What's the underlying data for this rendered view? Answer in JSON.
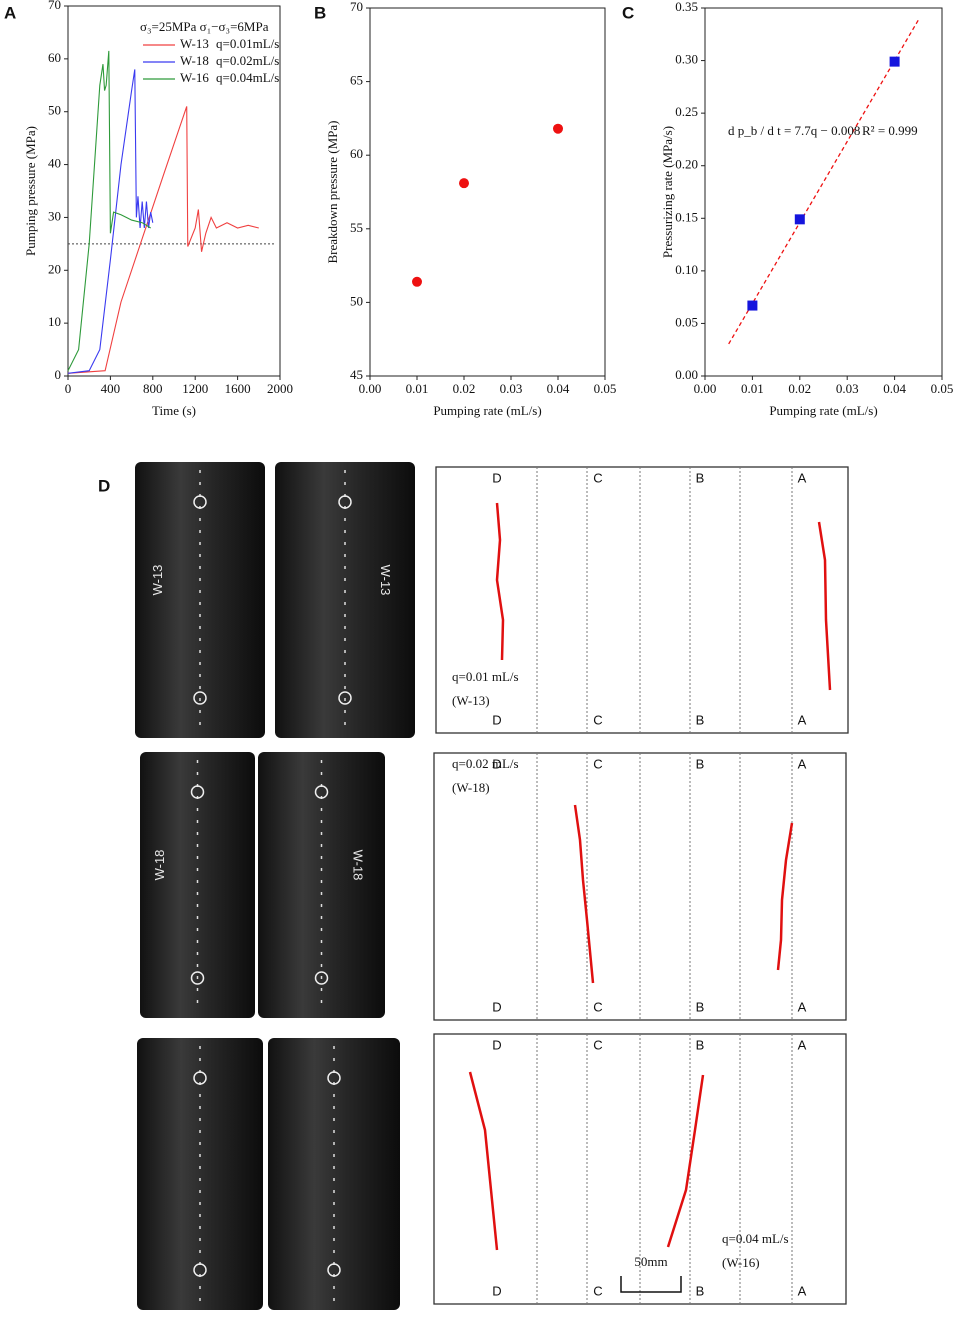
{
  "chart_data": [
    {
      "type": "line",
      "panel": "A",
      "xlabel": "Time (s)",
      "ylabel": "Pumping pressure (MPa)",
      "xlim": [
        0,
        2000
      ],
      "xticks": [
        0,
        400,
        800,
        1200,
        1600,
        2000
      ],
      "ylim": [
        0,
        70
      ],
      "yticks": [
        0,
        10,
        20,
        30,
        40,
        50,
        60,
        70
      ],
      "legend_title": "σ₃=25MPa  σ₁−σ₃=6MPa",
      "reference_line": 25,
      "series": [
        {
          "name": "W-13",
          "rate": "q=0.01mL/s",
          "color": "#f04040",
          "x": [
            0,
            350,
            500,
            700,
            900,
            1120,
            1130,
            1200,
            1230,
            1260,
            1300,
            1350,
            1400,
            1500,
            1600,
            1700,
            1800
          ],
          "values": [
            0.5,
            1,
            14,
            26,
            38,
            51,
            24.5,
            28,
            31.5,
            23.5,
            27,
            30,
            28,
            29,
            28,
            28.5,
            28
          ]
        },
        {
          "name": "W-18",
          "rate": "q=0.02mL/s",
          "color": "#3a3af0",
          "x": [
            0,
            200,
            300,
            400,
            500,
            600,
            630,
            645,
            660,
            680,
            700,
            720,
            740,
            760,
            780,
            800
          ],
          "values": [
            0.5,
            1,
            5,
            22,
            40,
            54,
            58,
            30,
            34,
            28,
            33,
            28,
            33,
            28,
            31,
            29
          ]
        },
        {
          "name": "W-16",
          "rate": "q=0.04mL/s",
          "color": "#2e9a3a",
          "x": [
            0,
            100,
            200,
            300,
            330,
            345,
            360,
            385,
            400,
            430,
            500,
            600,
            700,
            780
          ],
          "values": [
            1,
            5,
            25,
            55,
            59,
            54,
            55,
            61.5,
            27,
            31,
            30.5,
            29.5,
            29,
            28
          ]
        }
      ]
    },
    {
      "type": "scatter",
      "panel": "B",
      "xlabel": "Pumping rate (mL/s)",
      "ylabel": "Breakdown pressure (MPa)",
      "xlim": [
        0,
        0.05
      ],
      "xticks": [
        {
          "value": 0,
          "label": "0.00"
        },
        {
          "value": 0.01,
          "label": "0.01"
        },
        {
          "value": 0.02,
          "label": "0.02"
        },
        {
          "value": 0.03,
          "label": "0.03"
        },
        {
          "value": 0.04,
          "label": "0.04"
        },
        {
          "value": 0.05,
          "label": "0.05"
        }
      ],
      "ylim": [
        45,
        70
      ],
      "yticks": [
        45,
        50,
        55,
        60,
        65,
        70
      ],
      "marker": "circle",
      "color": "#ee1111",
      "x": [
        0.01,
        0.02,
        0.04
      ],
      "values": [
        51.4,
        58.1,
        61.8
      ]
    },
    {
      "type": "scatter",
      "panel": "C",
      "xlabel": "Pumping rate (mL/s)",
      "ylabel": "Pressurizing rate (MPa/s)",
      "xlim": [
        0,
        0.05
      ],
      "xticks": [
        {
          "value": 0,
          "label": "0.00"
        },
        {
          "value": 0.01,
          "label": "0.01"
        },
        {
          "value": 0.02,
          "label": "0.02"
        },
        {
          "value": 0.03,
          "label": "0.03"
        },
        {
          "value": 0.04,
          "label": "0.04"
        },
        {
          "value": 0.05,
          "label": "0.05"
        }
      ],
      "ylim": [
        0,
        0.35
      ],
      "yticks": [
        {
          "value": 0,
          "label": "0.00"
        },
        {
          "value": 0.05,
          "label": "0.05"
        },
        {
          "value": 0.1,
          "label": "0.10"
        },
        {
          "value": 0.15,
          "label": "0.15"
        },
        {
          "value": 0.2,
          "label": "0.20"
        },
        {
          "value": 0.25,
          "label": "0.25"
        },
        {
          "value": 0.3,
          "label": "0.30"
        },
        {
          "value": 0.35,
          "label": "0.35"
        }
      ],
      "marker": "square",
      "color": "#1515dd",
      "x": [
        0.01,
        0.02,
        0.04
      ],
      "values": [
        0.067,
        0.149,
        0.299
      ],
      "fit": {
        "slope": 7.7,
        "intercept": -0.008,
        "xrange": [
          0.005,
          0.045
        ],
        "color": "#ee1111"
      },
      "equation": "d p_b / d t = 7.7q − 0.008",
      "r2": "R² = 0.999"
    }
  ],
  "panel_d": {
    "label": "D",
    "scale_bar": "50mm",
    "rows": [
      {
        "top": [
          "D",
          "C",
          "B",
          "A"
        ],
        "bottom": [
          "D",
          "C",
          "B",
          "A"
        ],
        "rate": "q=0.01 mL/s",
        "sample": "(W-13)",
        "photo_label": "W-13"
      },
      {
        "top": [
          "D",
          "C",
          "B",
          "A"
        ],
        "bottom": [
          "D",
          "C",
          "B",
          "A"
        ],
        "rate": "q=0.02 mL/s",
        "sample": "(W-18)",
        "photo_label": "W-18"
      },
      {
        "top": [
          "D",
          "C",
          "B",
          "A"
        ],
        "bottom": [
          "D",
          "C",
          "B",
          "A"
        ],
        "rate": "q=0.04 mL/s",
        "sample": "(W-16)",
        "photo_label": ""
      }
    ]
  }
}
